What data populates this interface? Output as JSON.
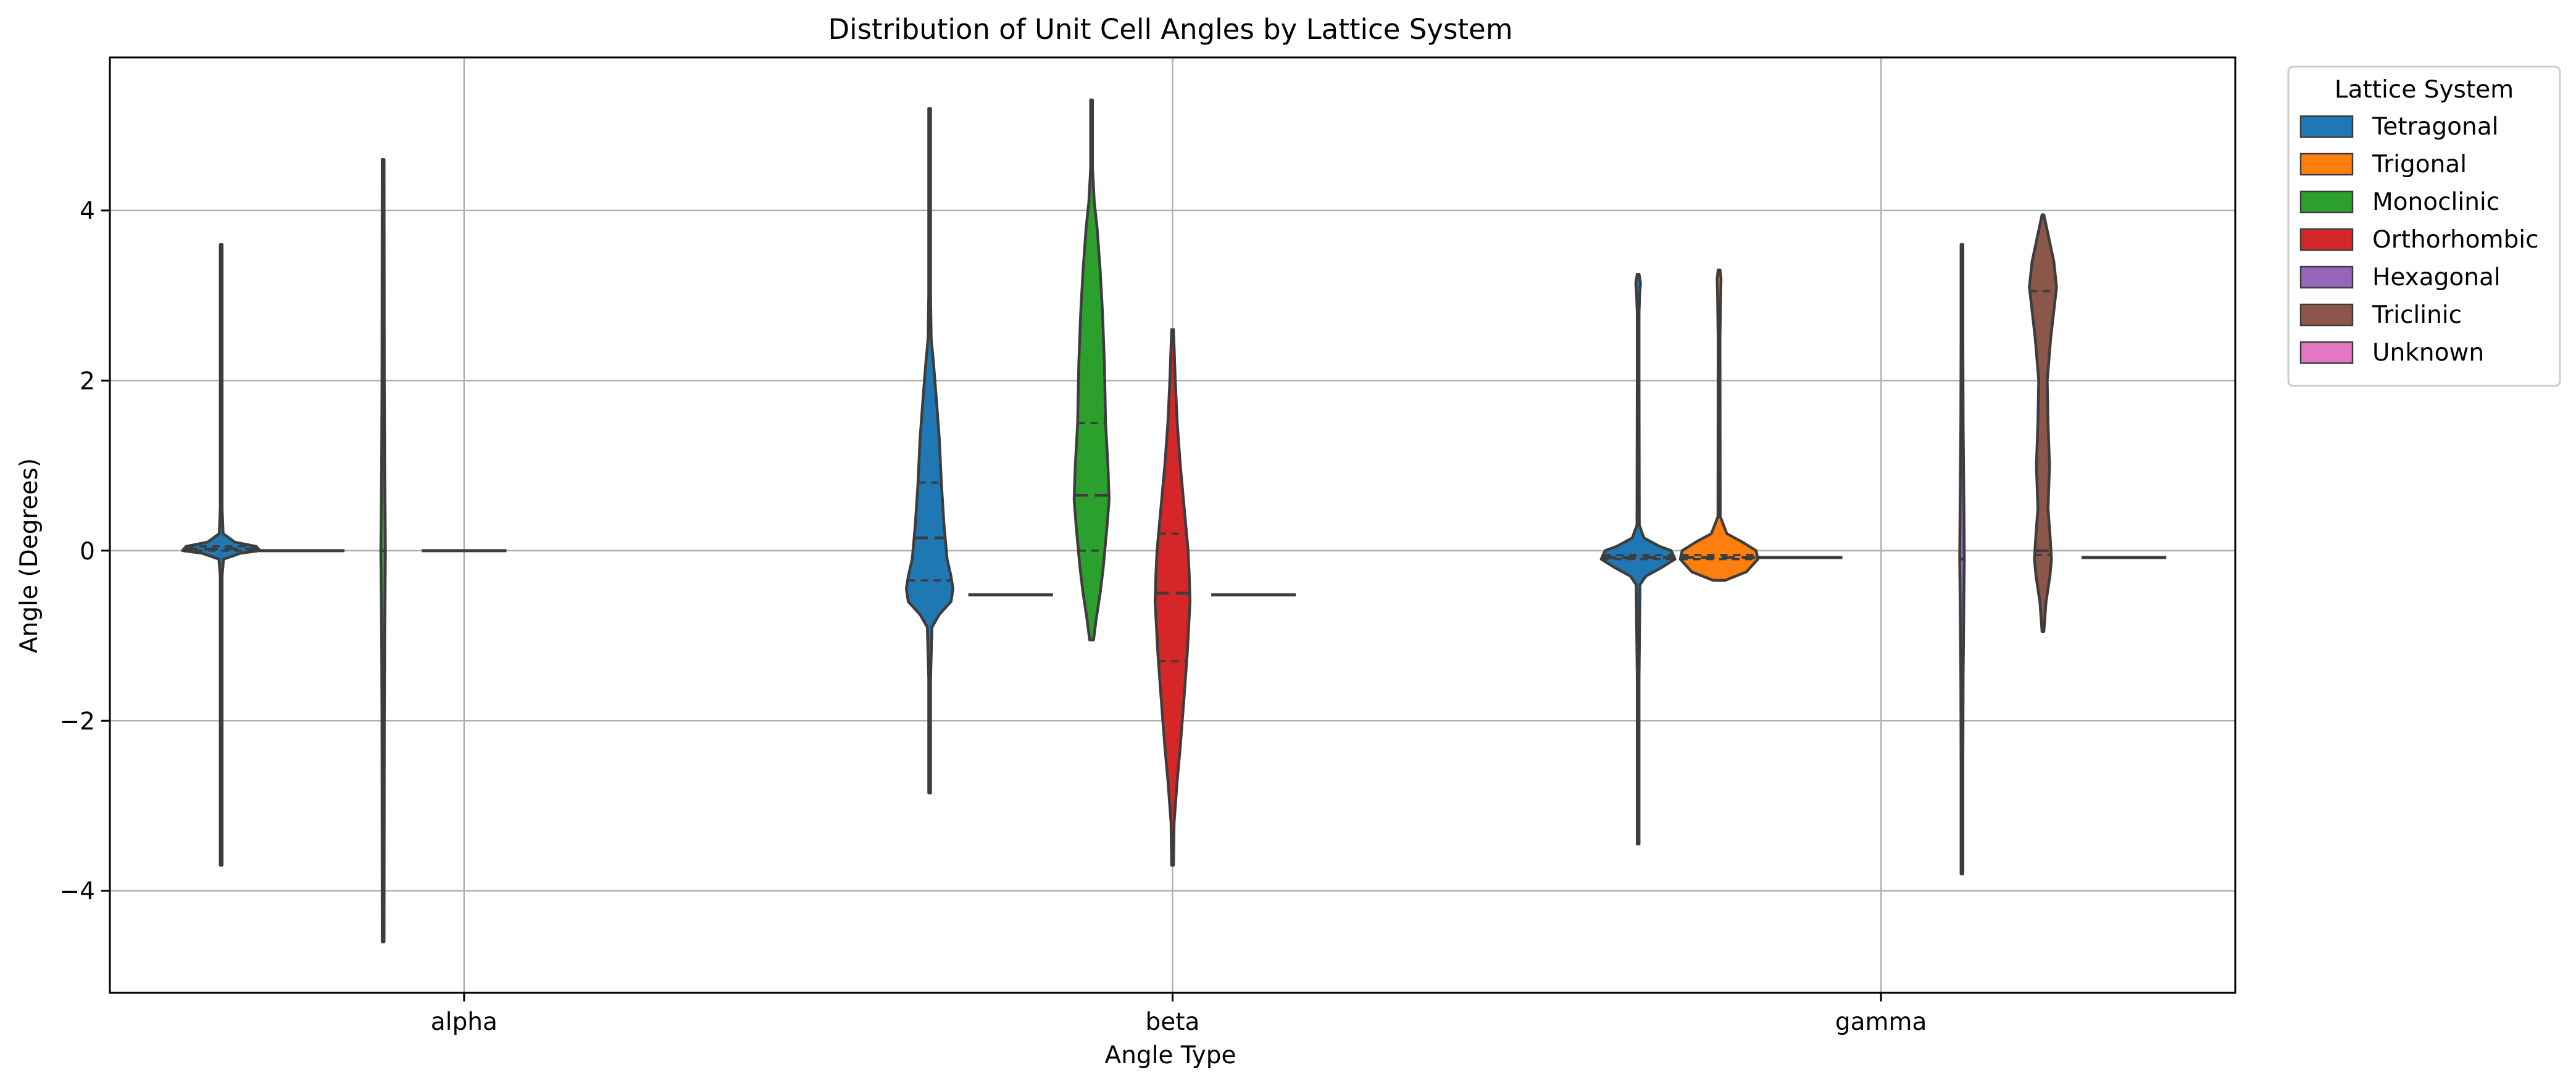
{
  "chart_data": {
    "type": "violin",
    "title": "Distribution of Unit Cell Angles by Lattice System",
    "xlabel": "Angle Type",
    "ylabel": "Angle (Degrees)",
    "categories": [
      "alpha",
      "beta",
      "gamma"
    ],
    "ylim": [
      -5.2,
      5.8
    ],
    "yticks": [
      -4,
      -2,
      0,
      2,
      4
    ],
    "grid": true,
    "legend": {
      "title": "Lattice System",
      "position": "outside-right"
    },
    "series": [
      {
        "name": "Tetragonal",
        "color": "#1f77b4"
      },
      {
        "name": "Trigonal",
        "color": "#ff7f0e"
      },
      {
        "name": "Monoclinic",
        "color": "#2ca02c"
      },
      {
        "name": "Orthorhombic",
        "color": "#d62728"
      },
      {
        "name": "Hexagonal",
        "color": "#9467bd"
      },
      {
        "name": "Triclinic",
        "color": "#8c564b"
      },
      {
        "name": "Unknown",
        "color": "#e377c2"
      }
    ],
    "violins": [
      {
        "category": "alpha",
        "series": "Tetragonal",
        "min": -3.7,
        "max": 3.6,
        "q1": 0.0,
        "median": 0.02,
        "q3": 0.05,
        "profile": [
          [
            -3.7,
            0.004
          ],
          [
            -2.0,
            0.004
          ],
          [
            -0.3,
            0.01
          ],
          [
            -0.1,
            0.06
          ],
          [
            -0.03,
            0.5
          ],
          [
            0.0,
            1.0
          ],
          [
            0.05,
            0.9
          ],
          [
            0.1,
            0.35
          ],
          [
            0.2,
            0.05
          ],
          [
            0.5,
            0.006
          ],
          [
            2.0,
            0.004
          ],
          [
            3.6,
            0.004
          ]
        ]
      },
      {
        "category": "alpha",
        "series": "Trigonal",
        "min": 0.0,
        "max": 0.0,
        "q1": 0.0,
        "median": 0.0,
        "q3": 0.0,
        "profile": []
      },
      {
        "category": "alpha",
        "series": "Monoclinic",
        "min": -4.6,
        "max": 4.6,
        "q1": -1.3,
        "median": 0.0,
        "q3": 1.1,
        "profile": [
          [
            -4.6,
            0.01
          ],
          [
            -2.0,
            0.03
          ],
          [
            -1.0,
            0.04
          ],
          [
            0.0,
            0.06
          ],
          [
            1.0,
            0.04
          ],
          [
            2.0,
            0.03
          ],
          [
            4.6,
            0.01
          ]
        ]
      },
      {
        "category": "alpha",
        "series": "Orthorhombic",
        "min": 0.0,
        "max": 0.0,
        "q1": 0.0,
        "median": 0.0,
        "q3": 0.0,
        "profile": []
      },
      {
        "category": "beta",
        "series": "Tetragonal",
        "min": -2.85,
        "max": 5.2,
        "q1": -0.35,
        "median": 0.15,
        "q3": 0.8,
        "profile": [
          [
            -2.85,
            0.01
          ],
          [
            -1.5,
            0.02
          ],
          [
            -0.9,
            0.06
          ],
          [
            -0.75,
            0.25
          ],
          [
            -0.6,
            0.55
          ],
          [
            -0.45,
            0.6
          ],
          [
            -0.3,
            0.55
          ],
          [
            -0.1,
            0.45
          ],
          [
            0.3,
            0.37
          ],
          [
            0.8,
            0.3
          ],
          [
            1.3,
            0.25
          ],
          [
            1.8,
            0.17
          ],
          [
            2.2,
            0.1
          ],
          [
            2.5,
            0.04
          ],
          [
            3.0,
            0.02
          ],
          [
            5.2,
            0.01
          ]
        ]
      },
      {
        "category": "beta",
        "series": "Trigonal",
        "min": -0.52,
        "max": -0.52,
        "q1": -0.52,
        "median": -0.52,
        "q3": -0.52,
        "profile": []
      },
      {
        "category": "beta",
        "series": "Monoclinic",
        "min": -1.05,
        "max": 5.3,
        "q1": 0.0,
        "median": 0.65,
        "q3": 1.5,
        "profile": [
          [
            -1.05,
            0.05
          ],
          [
            -0.8,
            0.12
          ],
          [
            -0.5,
            0.22
          ],
          [
            -0.2,
            0.3
          ],
          [
            0.0,
            0.34
          ],
          [
            0.3,
            0.4
          ],
          [
            0.6,
            0.45
          ],
          [
            1.0,
            0.42
          ],
          [
            1.5,
            0.36
          ],
          [
            2.2,
            0.33
          ],
          [
            2.8,
            0.28
          ],
          [
            3.3,
            0.22
          ],
          [
            3.8,
            0.14
          ],
          [
            4.1,
            0.07
          ],
          [
            4.5,
            0.02
          ],
          [
            5.3,
            0.01
          ]
        ]
      },
      {
        "category": "beta",
        "series": "Orthorhombic",
        "min": -3.7,
        "max": 2.6,
        "q1": -1.3,
        "median": -0.5,
        "q3": 0.2,
        "profile": [
          [
            -3.7,
            0.01
          ],
          [
            -3.2,
            0.04
          ],
          [
            -2.7,
            0.12
          ],
          [
            -2.3,
            0.2
          ],
          [
            -1.7,
            0.3
          ],
          [
            -1.2,
            0.38
          ],
          [
            -0.6,
            0.45
          ],
          [
            -0.3,
            0.43
          ],
          [
            0.0,
            0.4
          ],
          [
            0.5,
            0.3
          ],
          [
            1.0,
            0.2
          ],
          [
            1.5,
            0.12
          ],
          [
            2.0,
            0.07
          ],
          [
            2.6,
            0.02
          ]
        ]
      },
      {
        "category": "beta",
        "series": "Hexagonal",
        "min": -0.52,
        "max": -0.52,
        "q1": -0.52,
        "median": -0.52,
        "q3": -0.52,
        "profile": []
      },
      {
        "category": "gamma",
        "series": "Tetragonal",
        "min": -3.45,
        "max": 3.25,
        "q1": -0.1,
        "median": -0.08,
        "q3": -0.05,
        "profile": [
          [
            -3.45,
            0.005
          ],
          [
            -1.5,
            0.01
          ],
          [
            -0.4,
            0.05
          ],
          [
            -0.3,
            0.2
          ],
          [
            -0.2,
            0.6
          ],
          [
            -0.1,
            0.95
          ],
          [
            0.0,
            0.85
          ],
          [
            0.05,
            0.55
          ],
          [
            0.15,
            0.15
          ],
          [
            0.3,
            0.03
          ],
          [
            2.0,
            0.01
          ],
          [
            2.8,
            0.01
          ],
          [
            3.0,
            0.04
          ],
          [
            3.15,
            0.06
          ],
          [
            3.25,
            0.01
          ]
        ]
      },
      {
        "category": "gamma",
        "series": "Trigonal",
        "min": -0.35,
        "max": 3.3,
        "q1": -0.1,
        "median": -0.08,
        "q3": -0.05,
        "profile": [
          [
            -0.35,
            0.15
          ],
          [
            -0.25,
            0.7
          ],
          [
            -0.1,
            1.0
          ],
          [
            0.0,
            0.95
          ],
          [
            0.1,
            0.6
          ],
          [
            0.2,
            0.2
          ],
          [
            0.4,
            0.03
          ],
          [
            2.5,
            0.01
          ],
          [
            3.0,
            0.04
          ],
          [
            3.2,
            0.05
          ],
          [
            3.3,
            0.01
          ]
        ]
      },
      {
        "category": "gamma",
        "series": "Monoclinic",
        "min": -0.08,
        "max": -0.08,
        "q1": -0.08,
        "median": -0.08,
        "q3": -0.08,
        "profile": []
      },
      {
        "category": "gamma",
        "series": "Hexagonal",
        "min": -3.8,
        "max": 3.6,
        "q1": -1.15,
        "median": -0.1,
        "q3": 0.9,
        "profile": [
          [
            -3.8,
            0.01
          ],
          [
            -2.5,
            0.02
          ],
          [
            -1.5,
            0.03
          ],
          [
            -0.5,
            0.05
          ],
          [
            -0.1,
            0.06
          ],
          [
            0.5,
            0.05
          ],
          [
            1.5,
            0.03
          ],
          [
            2.5,
            0.02
          ],
          [
            3.6,
            0.01
          ]
        ]
      },
      {
        "category": "gamma",
        "series": "Triclinic",
        "min": -0.95,
        "max": 3.95,
        "q1": -0.05,
        "median": 0.0,
        "q3": 3.05,
        "profile": [
          [
            -0.95,
            0.02
          ],
          [
            -0.6,
            0.08
          ],
          [
            -0.3,
            0.18
          ],
          [
            -0.1,
            0.22
          ],
          [
            0.2,
            0.18
          ],
          [
            0.5,
            0.13
          ],
          [
            1.0,
            0.17
          ],
          [
            1.5,
            0.13
          ],
          [
            2.0,
            0.11
          ],
          [
            2.5,
            0.2
          ],
          [
            2.9,
            0.3
          ],
          [
            3.1,
            0.35
          ],
          [
            3.4,
            0.28
          ],
          [
            3.7,
            0.14
          ],
          [
            3.95,
            0.02
          ]
        ]
      },
      {
        "category": "gamma",
        "series": "Unknown",
        "min": -0.08,
        "max": -0.08,
        "q1": -0.08,
        "median": -0.08,
        "q3": -0.08,
        "profile": []
      }
    ]
  }
}
